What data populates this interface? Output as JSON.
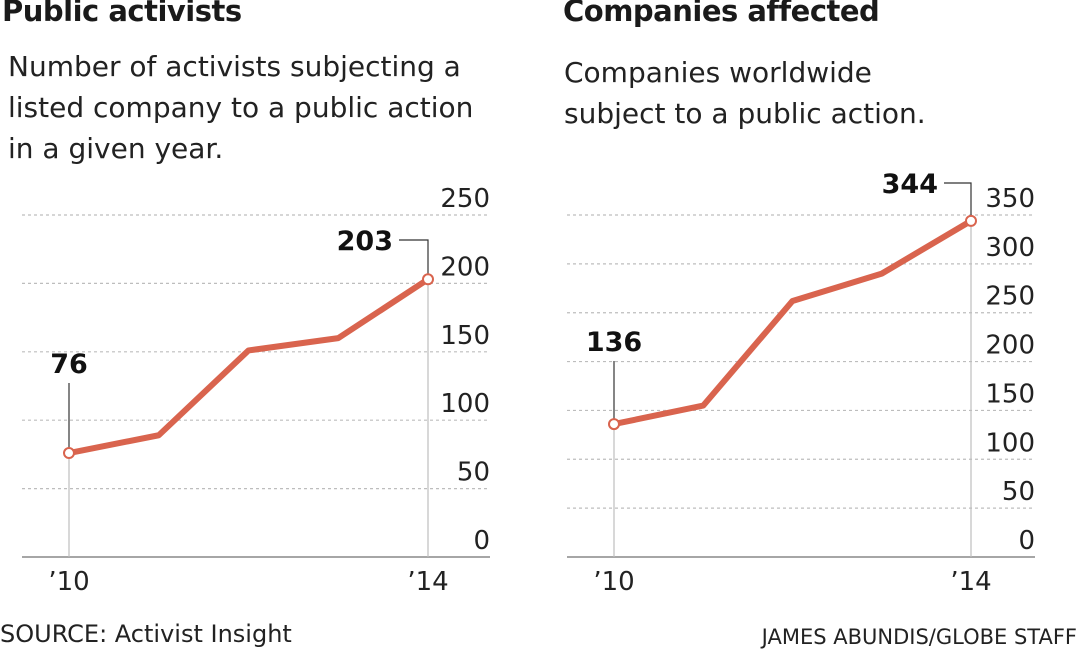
{
  "colors": {
    "line": "#d9644e",
    "grid": "#bdbdbd",
    "axis": "#888888",
    "text": "#1a1a1a"
  },
  "chart_data": [
    {
      "type": "line",
      "title": "Public activists",
      "subtitle_lines": [
        "Number of activists subjecting a",
        "listed company to a public action",
        "in a given year."
      ],
      "x": [
        2010,
        2011,
        2012,
        2013,
        2014
      ],
      "x_tick_labels": [
        "’10",
        "’14"
      ],
      "y_ticks": [
        0,
        50,
        100,
        150,
        200,
        250
      ],
      "ylim": [
        0,
        250
      ],
      "series": [
        {
          "values": [
            76,
            89,
            151,
            160,
            203
          ]
        }
      ],
      "annotations": [
        {
          "x": 2010,
          "value": 76,
          "text": "76"
        },
        {
          "x": 2014,
          "value": 203,
          "text": "203"
        }
      ],
      "grid": true
    },
    {
      "type": "line",
      "title": "Companies affected",
      "subtitle_lines": [
        "Companies worldwide",
        "subject to a public action."
      ],
      "x": [
        2010,
        2011,
        2012,
        2013,
        2014
      ],
      "x_tick_labels": [
        "’10",
        "’14"
      ],
      "y_ticks": [
        0,
        50,
        100,
        150,
        200,
        250,
        300,
        350
      ],
      "ylim": [
        0,
        350
      ],
      "series": [
        {
          "values": [
            136,
            155,
            262,
            290,
            344
          ]
        }
      ],
      "annotations": [
        {
          "x": 2010,
          "value": 136,
          "text": "136"
        },
        {
          "x": 2014,
          "value": 344,
          "text": "344"
        }
      ],
      "grid": true
    }
  ],
  "footer": {
    "source": "SOURCE: Activist Insight",
    "credit": "JAMES ABUNDIS/GLOBE STAFF"
  }
}
